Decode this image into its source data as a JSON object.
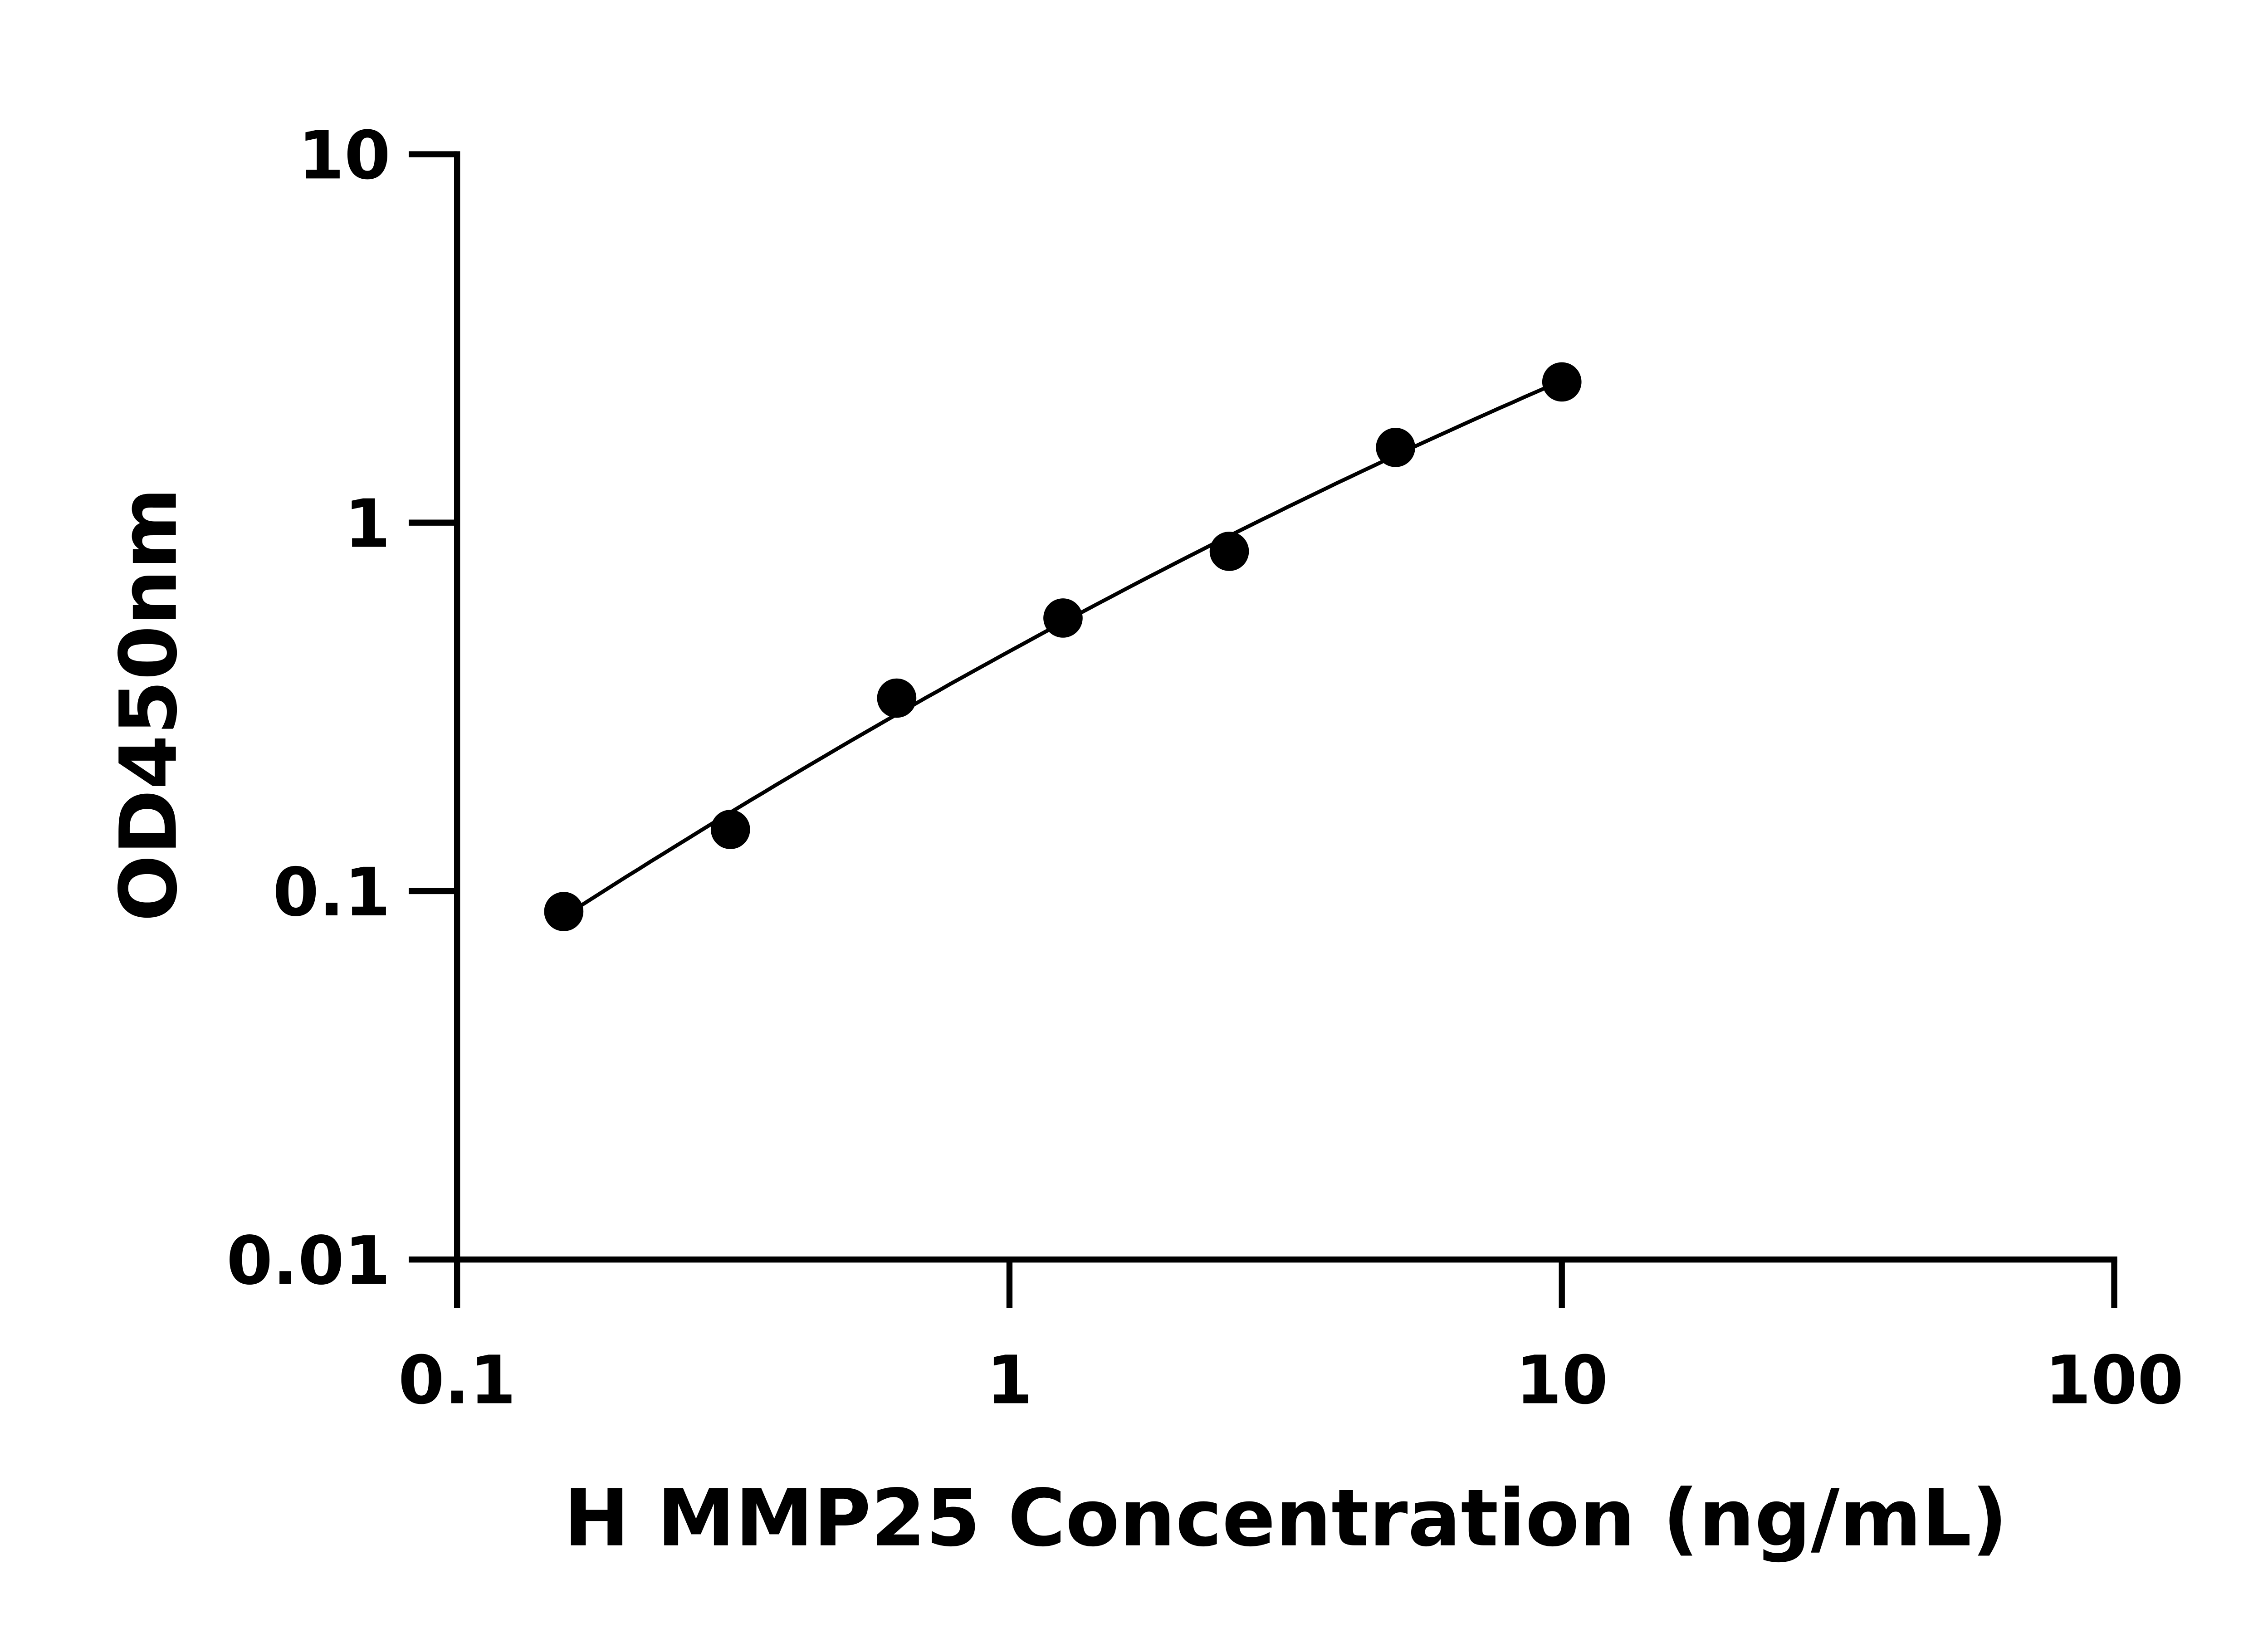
{
  "chart_data": {
    "type": "scatter",
    "title": "",
    "xlabel": "H MMP25 Concentration (ng/mL)",
    "ylabel": "OD450nm",
    "x_scale": "log",
    "y_scale": "log",
    "xlim": [
      0.1,
      100
    ],
    "ylim": [
      0.01,
      10
    ],
    "x_ticks": [
      "0.1",
      "1",
      "10",
      "100"
    ],
    "y_ticks": [
      "0.01",
      "0.1",
      "1",
      "10"
    ],
    "grid": false,
    "fit_curve": true,
    "color": "#000000",
    "x": [
      0.156,
      0.3125,
      0.625,
      1.25,
      2.5,
      5,
      10
    ],
    "y": [
      0.088,
      0.147,
      0.334,
      0.551,
      0.836,
      1.6,
      2.41
    ]
  }
}
